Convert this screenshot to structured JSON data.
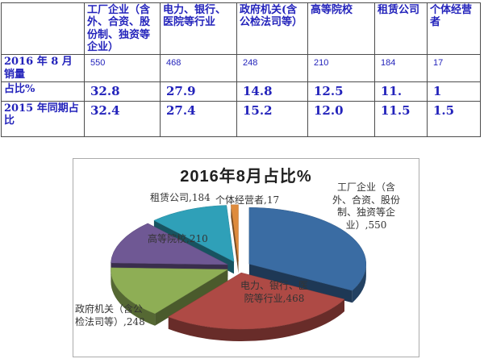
{
  "table": {
    "columns": [
      "",
      "工厂企业（含外、合资、股份制、独资等企业）",
      "电力、银行、医院等行业",
      "政府机关(含公检法司等）",
      "高等院校",
      "租赁公司",
      "个体经营者"
    ],
    "rows": [
      {
        "label": "2016 年 8 月销量",
        "values": [
          "550",
          "468",
          "248",
          "210",
          "184",
          "17"
        ]
      },
      {
        "label": "占比%",
        "values": [
          "32.8",
          "27.9",
          "14.8",
          "12.5",
          "11.",
          "1"
        ]
      },
      {
        "label": "2015 年同期占比",
        "values": [
          "32.4",
          "27.4",
          "15.2",
          "12.0",
          "11.5",
          "1.5"
        ]
      }
    ]
  },
  "chart_data": {
    "type": "pie",
    "title": "2016年8月占比%",
    "effect": "3d-exploded",
    "start_angle_deg": 0,
    "direction": "clockwise",
    "legend": "none",
    "points": [
      {
        "name": "工厂企业（含外、合资、股份制、独资等企业）",
        "value": 550,
        "pct": 32.8,
        "color": "#3a6ca3",
        "label": "工厂企业（含\n外、合资、股份\n制、独资等企\n业）,550"
      },
      {
        "name": "电力、银行、医院等行业",
        "value": 468,
        "pct": 27.9,
        "color": "#ae4a45",
        "label": "电力、银行、医\n院等行业,468"
      },
      {
        "name": "政府机关（含公检法司等）",
        "value": 248,
        "pct": 14.8,
        "color": "#8eae55",
        "label": "政府机关（含公\n检法司等）,248"
      },
      {
        "name": "高等院校",
        "value": 210,
        "pct": 12.5,
        "color": "#6f5894",
        "label": "高等院校,210"
      },
      {
        "name": "租赁公司",
        "value": 184,
        "pct": 11.0,
        "color": "#2fa0b8",
        "label": "租赁公司,184"
      },
      {
        "name": "个体经营者",
        "value": 17,
        "pct": 1.0,
        "color": "#de8b3d",
        "label": "个体经营者,17"
      }
    ]
  }
}
